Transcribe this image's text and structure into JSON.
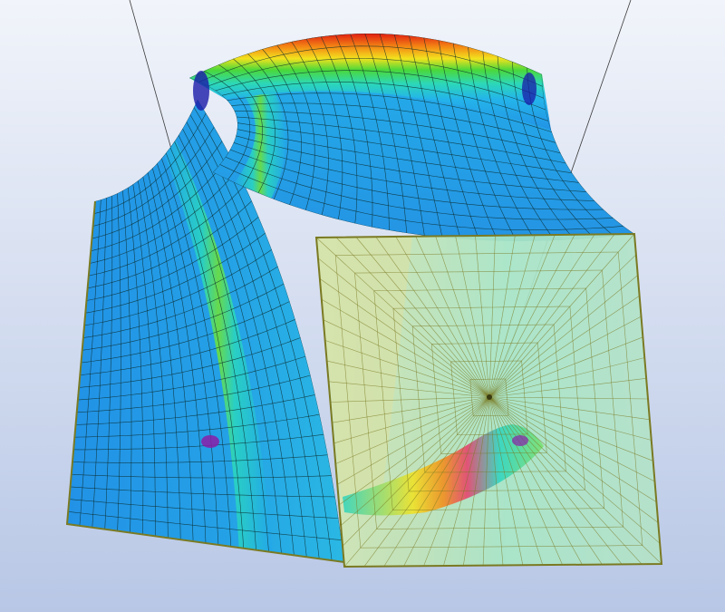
{
  "viewport": {
    "background_top": "#f1f4fa",
    "background_bottom": "#b8c7e6"
  },
  "model": {
    "mesh_line_color": "#0b2a2a",
    "edge_color": "#7a7a22",
    "colormap": [
      "#1a1aa8",
      "#1e64e6",
      "#22a6ea",
      "#2ad4c0",
      "#36d84a",
      "#b6e12a",
      "#f2e21e",
      "#f48a14",
      "#e01e12"
    ],
    "transparent_panel_fill": "#c8e8b4"
  }
}
